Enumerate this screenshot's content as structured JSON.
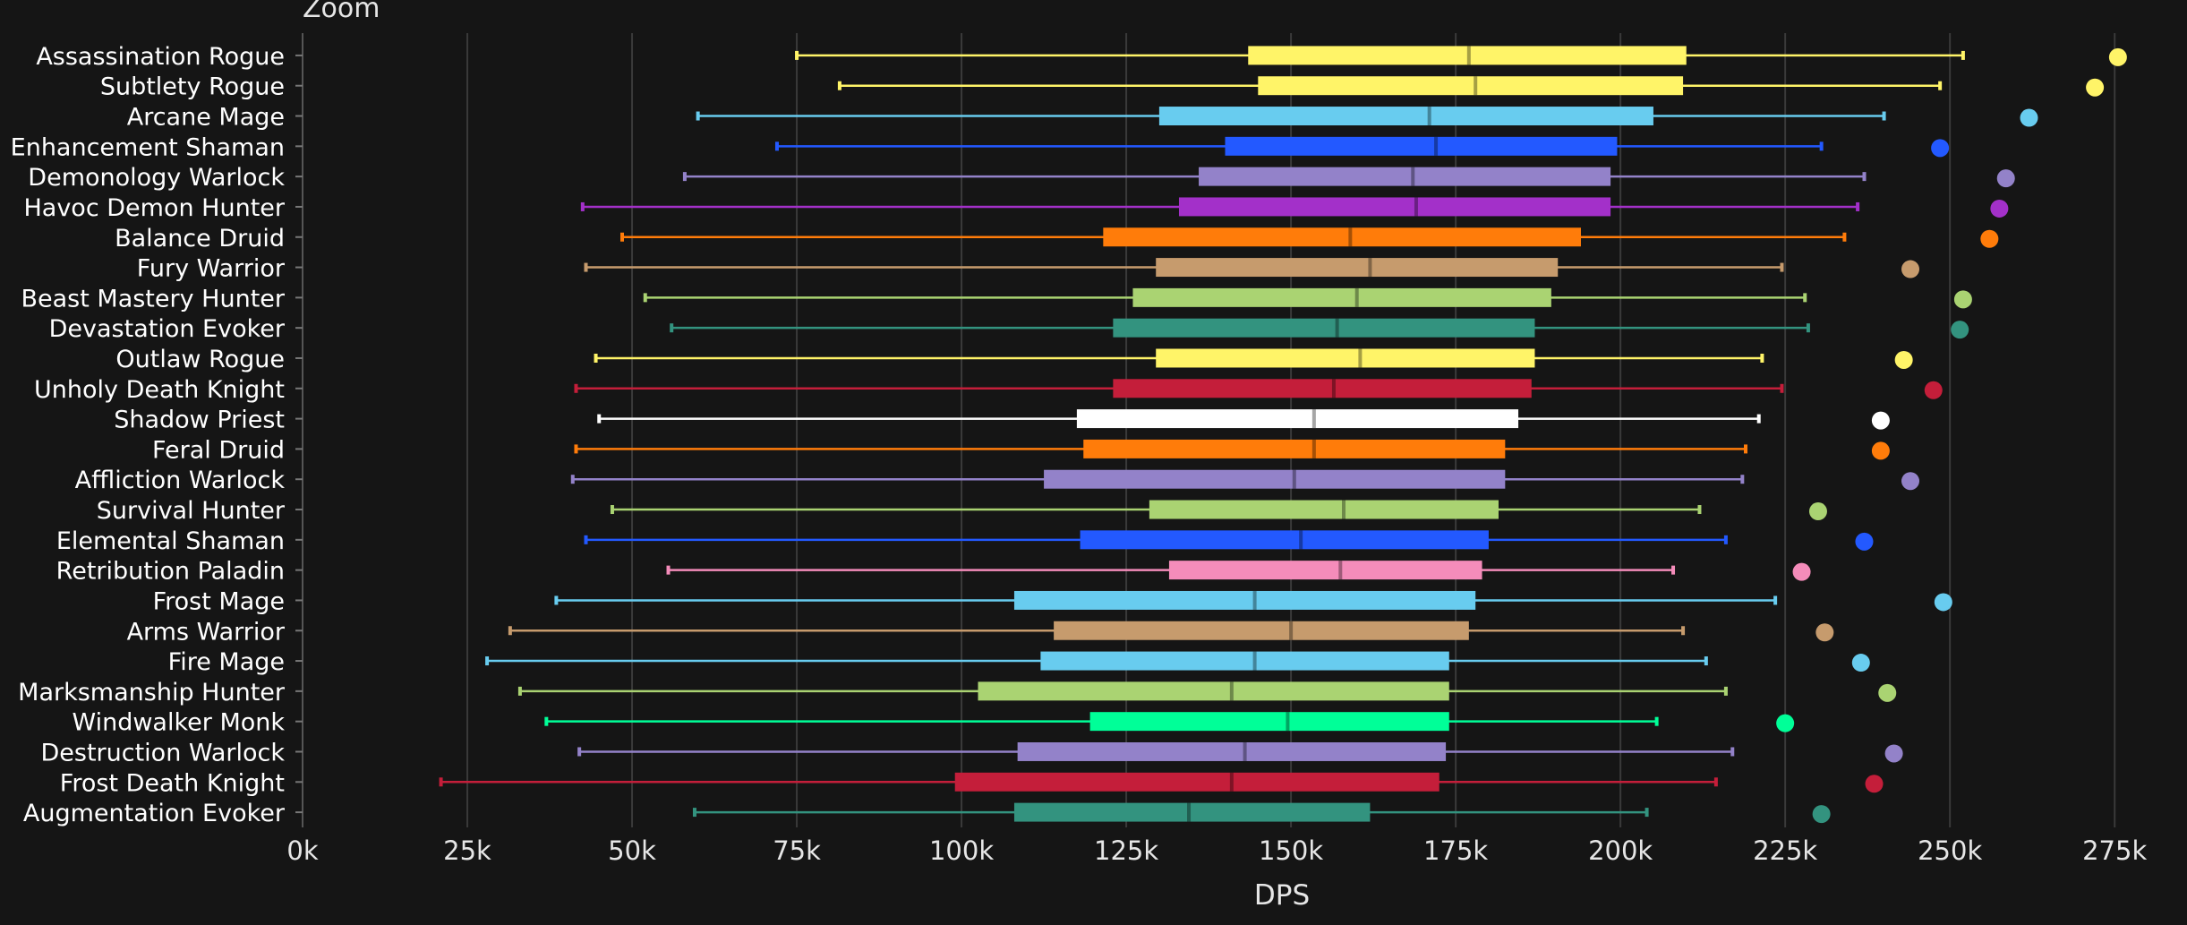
{
  "header": {
    "zoom_label": "Zoom"
  },
  "chart_data": {
    "type": "boxplot",
    "orientation": "horizontal",
    "xlabel": "DPS",
    "xlim": [
      0,
      280000
    ],
    "xticks": [
      0,
      25000,
      50000,
      75000,
      100000,
      125000,
      150000,
      175000,
      200000,
      225000,
      250000,
      275000
    ],
    "xtick_labels": [
      "0k",
      "25k",
      "50k",
      "75k",
      "100k",
      "125k",
      "150k",
      "175k",
      "200k",
      "225k",
      "250k",
      "275k"
    ],
    "grid": "vertical",
    "series": [
      {
        "name": "Assassination Rogue",
        "color": "#fff468",
        "min": 75000,
        "q1": 143500,
        "median": 177000,
        "q3": 210000,
        "max": 252000,
        "outlier": 275500
      },
      {
        "name": "Subtlety Rogue",
        "color": "#fff468",
        "min": 81500,
        "q1": 145000,
        "median": 178000,
        "q3": 209500,
        "max": 248500,
        "outlier": 272000
      },
      {
        "name": "Arcane Mage",
        "color": "#68ccef",
        "min": 60000,
        "q1": 130000,
        "median": 171000,
        "q3": 205000,
        "max": 240000,
        "outlier": 262000
      },
      {
        "name": "Enhancement Shaman",
        "color": "#2359ff",
        "min": 72000,
        "q1": 140000,
        "median": 172000,
        "q3": 199500,
        "max": 230500,
        "outlier": 248500
      },
      {
        "name": "Demonology Warlock",
        "color": "#9382c9",
        "min": 58000,
        "q1": 136000,
        "median": 168500,
        "q3": 198500,
        "max": 237000,
        "outlier": 258500
      },
      {
        "name": "Havoc Demon Hunter",
        "color": "#a330c9",
        "min": 42500,
        "q1": 133000,
        "median": 169000,
        "q3": 198500,
        "max": 236000,
        "outlier": 257500
      },
      {
        "name": "Balance Druid",
        "color": "#ff7c0a",
        "min": 48500,
        "q1": 121500,
        "median": 159000,
        "q3": 194000,
        "max": 234000,
        "outlier": 256000
      },
      {
        "name": "Fury Warrior",
        "color": "#c69b6d",
        "min": 43000,
        "q1": 129500,
        "median": 162000,
        "q3": 190500,
        "max": 224500,
        "outlier": 244000
      },
      {
        "name": "Beast Mastery Hunter",
        "color": "#aad372",
        "min": 52000,
        "q1": 126000,
        "median": 160000,
        "q3": 189500,
        "max": 228000,
        "outlier": 252000
      },
      {
        "name": "Devastation Evoker",
        "color": "#33937f",
        "min": 56000,
        "q1": 123000,
        "median": 157000,
        "q3": 187000,
        "max": 228500,
        "outlier": 251500
      },
      {
        "name": "Outlaw Rogue",
        "color": "#fff468",
        "min": 44500,
        "q1": 129500,
        "median": 160500,
        "q3": 187000,
        "max": 221500,
        "outlier": 243000
      },
      {
        "name": "Unholy Death Knight",
        "color": "#c41e3a",
        "min": 41500,
        "q1": 123000,
        "median": 156500,
        "q3": 186500,
        "max": 224500,
        "outlier": 247500
      },
      {
        "name": "Shadow Priest",
        "color": "#ffffff",
        "min": 45000,
        "q1": 117500,
        "median": 153500,
        "q3": 184500,
        "max": 221000,
        "outlier": 239500
      },
      {
        "name": "Feral Druid",
        "color": "#ff7c0a",
        "min": 41500,
        "q1": 118500,
        "median": 153500,
        "q3": 182500,
        "max": 219000,
        "outlier": 239500
      },
      {
        "name": "Affliction Warlock",
        "color": "#9382c9",
        "min": 41000,
        "q1": 112500,
        "median": 150500,
        "q3": 182500,
        "max": 218500,
        "outlier": 244000
      },
      {
        "name": "Survival Hunter",
        "color": "#aad372",
        "min": 47000,
        "q1": 128500,
        "median": 158000,
        "q3": 181500,
        "max": 212000,
        "outlier": 230000
      },
      {
        "name": "Elemental Shaman",
        "color": "#2359ff",
        "min": 43000,
        "q1": 118000,
        "median": 151500,
        "q3": 180000,
        "max": 216000,
        "outlier": 237000
      },
      {
        "name": "Retribution Paladin",
        "color": "#f48cba",
        "min": 55500,
        "q1": 131500,
        "median": 157500,
        "q3": 179000,
        "max": 208000,
        "outlier": 227500
      },
      {
        "name": "Frost Mage",
        "color": "#68ccef",
        "min": 38500,
        "q1": 108000,
        "median": 144500,
        "q3": 178000,
        "max": 223500,
        "outlier": 249000
      },
      {
        "name": "Arms Warrior",
        "color": "#c69b6d",
        "min": 31500,
        "q1": 114000,
        "median": 150000,
        "q3": 177000,
        "max": 209500,
        "outlier": 231000
      },
      {
        "name": "Fire Mage",
        "color": "#68ccef",
        "min": 28000,
        "q1": 112000,
        "median": 144500,
        "q3": 174000,
        "max": 213000,
        "outlier": 236500
      },
      {
        "name": "Marksmanship Hunter",
        "color": "#aad372",
        "min": 33000,
        "q1": 102500,
        "median": 141000,
        "q3": 174000,
        "max": 216000,
        "outlier": 240500
      },
      {
        "name": "Windwalker Monk",
        "color": "#00ff98",
        "min": 37000,
        "q1": 119500,
        "median": 149500,
        "q3": 174000,
        "max": 205500,
        "outlier": 225000
      },
      {
        "name": "Destruction Warlock",
        "color": "#9382c9",
        "min": 42000,
        "q1": 108500,
        "median": 143000,
        "q3": 173500,
        "max": 217000,
        "outlier": 241500
      },
      {
        "name": "Frost Death Knight",
        "color": "#c41e3a",
        "min": 21000,
        "q1": 99000,
        "median": 141000,
        "q3": 172500,
        "max": 214500,
        "outlier": 238500
      },
      {
        "name": "Augmentation Evoker",
        "color": "#33937f",
        "min": 59500,
        "q1": 108000,
        "median": 134500,
        "q3": 162000,
        "max": 204000,
        "outlier": 230500
      }
    ]
  }
}
